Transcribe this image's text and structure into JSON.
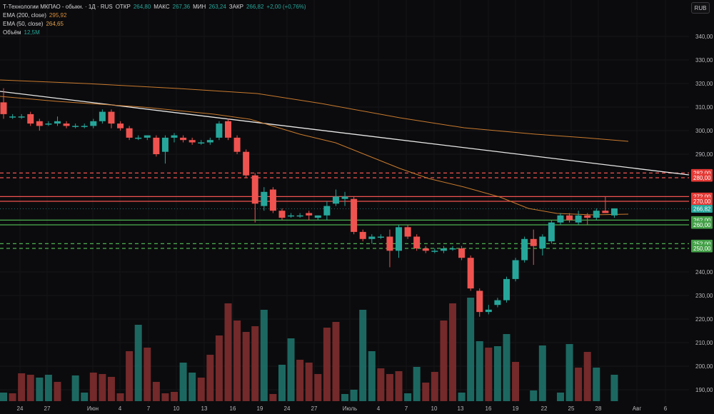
{
  "header": {
    "symbol": "Т-Технологии МКПАО - обыкн. · 1Д · RUS",
    "open_label": "ОТКР",
    "open": "264,80",
    "high_label": "МАКС",
    "high": "267,36",
    "low_label": "МИН",
    "low": "263,24",
    "close_label": "ЗАКР",
    "close": "266,82",
    "change": "+2,00 (+0,76%)"
  },
  "indicators": {
    "ema200_label": "EMA (200, close)",
    "ema200_value": "295,92",
    "ema50_label": "EMA (50, close)",
    "ema50_value": "264,65",
    "volume_label": "Объём",
    "volume_value": "12,5M"
  },
  "currency_button": "RUB",
  "colors": {
    "up": "#26a69a",
    "down": "#ef5350",
    "ema200": "#c87a2e",
    "ema50": "#c87a2e",
    "trendline": "#e8e8e8",
    "resistance": "#ef5350",
    "support": "#4caf50",
    "background": "#0b0b0d"
  },
  "chart_data": {
    "type": "candlestick",
    "price_axis_labels": [
      "340,00",
      "330,00",
      "320,00",
      "310,00",
      "300,00",
      "290,00",
      "240,00",
      "230,00",
      "220,00",
      "210,00",
      "200,00",
      "190,00"
    ],
    "time_axis_labels": [
      "24",
      "27",
      "Июн",
      "4",
      "7",
      "10",
      "13",
      "16",
      "19",
      "24",
      "27",
      "Июль",
      "4",
      "7",
      "10",
      "13",
      "16",
      "19",
      "22",
      "25",
      "28",
      "Авг",
      "6"
    ],
    "badges": [
      {
        "text": "282,00",
        "kind": "resistance-dashed",
        "price": 282
      },
      {
        "text": "280,00",
        "kind": "resistance-dashed",
        "price": 280
      },
      {
        "text": "272,00",
        "kind": "resistance",
        "price": 272
      },
      {
        "text": "270,00",
        "kind": "resistance",
        "price": 270
      },
      {
        "text": "266,82",
        "kind": "last",
        "price": 266.82
      },
      {
        "text": "262,00",
        "kind": "support",
        "price": 262
      },
      {
        "text": "260,00",
        "kind": "support",
        "price": 260
      },
      {
        "text": "252,00",
        "kind": "support-dashed",
        "price": 252
      },
      {
        "text": "250,00",
        "kind": "support-dashed",
        "price": 250
      }
    ],
    "candles": [
      {
        "o": 312,
        "h": 318,
        "l": 305,
        "c": 307
      },
      {
        "o": 306,
        "h": 307,
        "l": 305,
        "c": 306
      },
      {
        "o": 306,
        "h": 307,
        "l": 305,
        "c": 306
      },
      {
        "o": 307,
        "h": 308,
        "l": 302,
        "c": 303
      },
      {
        "o": 304,
        "h": 305,
        "l": 300,
        "c": 302
      },
      {
        "o": 303,
        "h": 304,
        "l": 302,
        "c": 303
      },
      {
        "o": 303,
        "h": 306,
        "l": 302,
        "c": 304
      },
      {
        "o": 303,
        "h": 304,
        "l": 301,
        "c": 302
      },
      {
        "o": 302,
        "h": 303,
        "l": 301,
        "c": 302
      },
      {
        "o": 302,
        "h": 303,
        "l": 301,
        "c": 302
      },
      {
        "o": 302,
        "h": 305,
        "l": 301,
        "c": 304
      },
      {
        "o": 304,
        "h": 309,
        "l": 303,
        "c": 308
      },
      {
        "o": 308,
        "h": 309,
        "l": 301,
        "c": 303
      },
      {
        "o": 303,
        "h": 304,
        "l": 300,
        "c": 301
      },
      {
        "o": 301,
        "h": 302,
        "l": 296,
        "c": 297
      },
      {
        "o": 297,
        "h": 298,
        "l": 296,
        "c": 297
      },
      {
        "o": 297,
        "h": 298,
        "l": 296,
        "c": 298
      },
      {
        "o": 297,
        "h": 298,
        "l": 289,
        "c": 290
      },
      {
        "o": 291,
        "h": 298,
        "l": 286,
        "c": 297
      },
      {
        "o": 297,
        "h": 299,
        "l": 295,
        "c": 298
      },
      {
        "o": 297,
        "h": 298,
        "l": 295,
        "c": 296
      },
      {
        "o": 296,
        "h": 297,
        "l": 294,
        "c": 295
      },
      {
        "o": 295,
        "h": 296,
        "l": 294,
        "c": 295
      },
      {
        "o": 295,
        "h": 297,
        "l": 294,
        "c": 296
      },
      {
        "o": 297,
        "h": 304,
        "l": 296,
        "c": 303
      },
      {
        "o": 304,
        "h": 305,
        "l": 296,
        "c": 297
      },
      {
        "o": 297,
        "h": 298,
        "l": 290,
        "c": 291
      },
      {
        "o": 291,
        "h": 292,
        "l": 280,
        "c": 281
      },
      {
        "o": 281,
        "h": 282,
        "l": 261,
        "c": 269
      },
      {
        "o": 268,
        "h": 276,
        "l": 266,
        "c": 274
      },
      {
        "o": 275,
        "h": 276,
        "l": 265,
        "c": 266
      },
      {
        "o": 266,
        "h": 267,
        "l": 262,
        "c": 263
      },
      {
        "o": 264,
        "h": 265,
        "l": 263,
        "c": 264
      },
      {
        "o": 264,
        "h": 265,
        "l": 263,
        "c": 264
      },
      {
        "o": 265,
        "h": 266,
        "l": 262,
        "c": 264
      },
      {
        "o": 263,
        "h": 264,
        "l": 262,
        "c": 264
      },
      {
        "o": 264,
        "h": 270,
        "l": 262,
        "c": 268
      },
      {
        "o": 269,
        "h": 275,
        "l": 268,
        "c": 272
      },
      {
        "o": 271,
        "h": 274,
        "l": 268,
        "c": 272
      },
      {
        "o": 271,
        "h": 272,
        "l": 256,
        "c": 257
      },
      {
        "o": 257,
        "h": 258,
        "l": 253,
        "c": 254
      },
      {
        "o": 254,
        "h": 256,
        "l": 252,
        "c": 255
      },
      {
        "o": 255,
        "h": 256,
        "l": 254,
        "c": 255
      },
      {
        "o": 255,
        "h": 258,
        "l": 242,
        "c": 249
      },
      {
        "o": 249,
        "h": 260,
        "l": 246,
        "c": 259
      },
      {
        "o": 259,
        "h": 260,
        "l": 254,
        "c": 255
      },
      {
        "o": 255,
        "h": 256,
        "l": 249,
        "c": 250
      },
      {
        "o": 250,
        "h": 251,
        "l": 248,
        "c": 249
      },
      {
        "o": 249,
        "h": 250,
        "l": 248,
        "c": 249
      },
      {
        "o": 249,
        "h": 251,
        "l": 248,
        "c": 250
      },
      {
        "o": 250,
        "h": 251,
        "l": 249,
        "c": 250
      },
      {
        "o": 250,
        "h": 251,
        "l": 245,
        "c": 246
      },
      {
        "o": 246,
        "h": 247,
        "l": 232,
        "c": 233
      },
      {
        "o": 232,
        "h": 233,
        "l": 221,
        "c": 223
      },
      {
        "o": 223,
        "h": 226,
        "l": 222,
        "c": 224
      },
      {
        "o": 226,
        "h": 229,
        "l": 225,
        "c": 228
      },
      {
        "o": 228,
        "h": 238,
        "l": 227,
        "c": 237
      },
      {
        "o": 237,
        "h": 246,
        "l": 236,
        "c": 245
      },
      {
        "o": 245,
        "h": 255,
        "l": 244,
        "c": 254
      },
      {
        "o": 254,
        "h": 258,
        "l": 243,
        "c": 251
      },
      {
        "o": 250,
        "h": 256,
        "l": 247,
        "c": 255
      },
      {
        "o": 253,
        "h": 262,
        "l": 252,
        "c": 261
      },
      {
        "o": 261,
        "h": 265,
        "l": 260,
        "c": 264
      },
      {
        "o": 264,
        "h": 265,
        "l": 261,
        "c": 262
      },
      {
        "o": 261,
        "h": 266,
        "l": 260,
        "c": 264
      },
      {
        "o": 264,
        "h": 265,
        "l": 260,
        "c": 263
      },
      {
        "o": 263,
        "h": 267,
        "l": 262,
        "c": 266
      },
      {
        "o": 266,
        "h": 272,
        "l": 265,
        "c": 265
      },
      {
        "o": 264,
        "h": 267,
        "l": 263,
        "c": 267
      }
    ],
    "volumes": [
      {
        "v": 12,
        "d": false
      },
      {
        "v": 11,
        "d": true
      },
      {
        "v": 39,
        "d": true
      },
      {
        "v": 37,
        "d": true
      },
      {
        "v": 33,
        "d": false
      },
      {
        "v": 37,
        "d": false
      },
      {
        "v": 27,
        "d": true
      },
      {
        "v": 0,
        "d": false
      },
      {
        "v": 36,
        "d": false
      },
      {
        "v": 12,
        "d": false
      },
      {
        "v": 40,
        "d": true
      },
      {
        "v": 38,
        "d": true
      },
      {
        "v": 34,
        "d": true
      },
      {
        "v": 11,
        "d": true
      },
      {
        "v": 70,
        "d": true
      },
      {
        "v": 107,
        "d": false
      },
      {
        "v": 75,
        "d": true
      },
      {
        "v": 27,
        "d": true
      },
      {
        "v": 11,
        "d": true
      },
      {
        "v": 13,
        "d": true
      },
      {
        "v": 54,
        "d": false
      },
      {
        "v": 40,
        "d": false
      },
      {
        "v": 33,
        "d": true
      },
      {
        "v": 65,
        "d": true
      },
      {
        "v": 92,
        "d": true
      },
      {
        "v": 137,
        "d": true
      },
      {
        "v": 113,
        "d": true
      },
      {
        "v": 97,
        "d": true
      },
      {
        "v": 105,
        "d": true
      },
      {
        "v": 128,
        "d": false
      },
      {
        "v": 10,
        "d": true
      },
      {
        "v": 51,
        "d": false
      },
      {
        "v": 88,
        "d": false
      },
      {
        "v": 58,
        "d": true
      },
      {
        "v": 54,
        "d": true
      },
      {
        "v": 38,
        "d": true
      },
      {
        "v": 103,
        "d": true
      },
      {
        "v": 111,
        "d": true
      },
      {
        "v": 10,
        "d": false
      },
      {
        "v": 16,
        "d": false
      },
      {
        "v": 128,
        "d": false
      },
      {
        "v": 70,
        "d": false
      },
      {
        "v": 46,
        "d": true
      },
      {
        "v": 38,
        "d": true
      },
      {
        "v": 42,
        "d": true
      },
      {
        "v": 11,
        "d": false
      },
      {
        "v": 48,
        "d": false
      },
      {
        "v": 26,
        "d": true
      },
      {
        "v": 41,
        "d": true
      },
      {
        "v": 113,
        "d": true
      },
      {
        "v": 137,
        "d": true
      },
      {
        "v": 12,
        "d": false
      },
      {
        "v": 145,
        "d": false
      },
      {
        "v": 84,
        "d": false
      },
      {
        "v": 75,
        "d": true
      },
      {
        "v": 77,
        "d": false
      },
      {
        "v": 94,
        "d": false
      },
      {
        "v": 55,
        "d": true
      },
      {
        "v": 0,
        "d": false
      },
      {
        "v": 15,
        "d": false
      },
      {
        "v": 78,
        "d": false
      },
      {
        "v": 0,
        "d": false
      },
      {
        "v": 12,
        "d": false
      },
      {
        "v": 80,
        "d": false
      },
      {
        "v": 47,
        "d": true
      },
      {
        "v": 69,
        "d": true
      },
      {
        "v": 47,
        "d": false
      },
      {
        "v": 0,
        "d": false
      },
      {
        "v": 37,
        "d": false
      }
    ]
  }
}
